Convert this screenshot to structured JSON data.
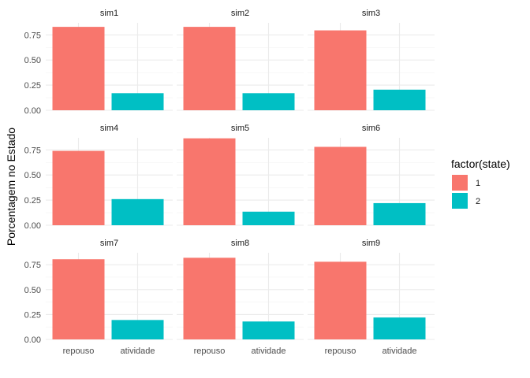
{
  "chart_data": {
    "type": "bar",
    "facets": [
      {
        "title": "sim1",
        "values": [
          0.83,
          0.17
        ]
      },
      {
        "title": "sim2",
        "values": [
          0.83,
          0.17
        ]
      },
      {
        "title": "sim3",
        "values": [
          0.795,
          0.205
        ]
      },
      {
        "title": "sim4",
        "values": [
          0.74,
          0.26
        ]
      },
      {
        "title": "sim5",
        "values": [
          0.865,
          0.135
        ]
      },
      {
        "title": "sim6",
        "values": [
          0.78,
          0.22
        ]
      },
      {
        "title": "sim7",
        "values": [
          0.805,
          0.195
        ]
      },
      {
        "title": "sim8",
        "values": [
          0.82,
          0.18
        ]
      },
      {
        "title": "sim9",
        "values": [
          0.78,
          0.22
        ]
      }
    ],
    "categories": [
      "repouso",
      "atividade"
    ],
    "category_state": [
      "1",
      "2"
    ],
    "ylabel": "Porcentagem no Estado",
    "xlabel": "",
    "ylim": [
      0,
      0.87
    ],
    "yticks": [
      "0.00",
      "0.25",
      "0.50",
      "0.75"
    ],
    "ytick_values": [
      0,
      0.25,
      0.5,
      0.75
    ],
    "grid": true,
    "legend": {
      "title": "factor(state)",
      "placement": "right",
      "entries": [
        {
          "label": "1",
          "color": "#F8766D"
        },
        {
          "label": "2",
          "color": "#00BFC4"
        }
      ]
    },
    "colors": {
      "1": "#F8766D",
      "2": "#00BFC4"
    }
  }
}
